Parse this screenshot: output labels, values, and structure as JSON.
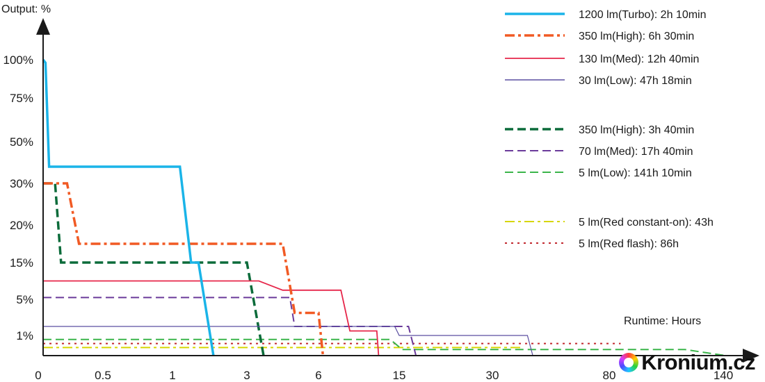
{
  "chart_data": {
    "type": "line",
    "step": true,
    "xlabel": "Runtime: Hours",
    "ylabel": "Output: %",
    "x_ticks": [
      "0",
      "0.5",
      "1",
      "3",
      "6",
      "15",
      "30",
      "80",
      "140"
    ],
    "x_tick_values": [
      0,
      0.5,
      1,
      3,
      6,
      15,
      30,
      80,
      140
    ],
    "y_ticks": [
      "1%",
      "5%",
      "15%",
      "20%",
      "30%",
      "50%",
      "75%",
      "100%"
    ],
    "y_tick_values": [
      1,
      5,
      15,
      20,
      30,
      50,
      75,
      100
    ],
    "axis_scale": "non-uniform (both axes; ticks evenly spaced)",
    "grid": false,
    "legend_position": "top-right",
    "legend_groups": [
      [
        "1200 lm(Turbo): 2h 10min",
        "350 lm(High): 6h 30min",
        "130 lm(Med): 12h 40min",
        "30 lm(Low): 47h 18min"
      ],
      [
        "350 lm(High): 3h 40min",
        "70 lm(Med): 17h 40min",
        "5 lm(Low): 141h 10min"
      ],
      [
        "5 lm(Red constant-on): 43h",
        "5 lm(Red flash): 86h"
      ]
    ],
    "series": [
      {
        "name": "1200 lm(Turbo): 2h 10min",
        "color": "#1ab4e8",
        "width": 3.5,
        "dash": "",
        "points": [
          [
            0,
            100
          ],
          [
            0.02,
            98
          ],
          [
            0.05,
            38
          ],
          [
            1.2,
            38
          ],
          [
            1.5,
            15
          ],
          [
            1.7,
            15
          ],
          [
            2.1,
            0
          ]
        ]
      },
      {
        "name": "350 lm(High): 6h 30min",
        "color": "#f15a24",
        "width": 3.5,
        "dash": "14,5,4,5",
        "points": [
          [
            0,
            30
          ],
          [
            0.2,
            30
          ],
          [
            0.3,
            17.5
          ],
          [
            4.5,
            17.5
          ],
          [
            5.0,
            3.5
          ],
          [
            6.0,
            3.5
          ],
          [
            6.5,
            0
          ]
        ]
      },
      {
        "name": "130 lm(Med): 12h 40min",
        "color": "#e6264a",
        "width": 1.8,
        "dash": "",
        "points": [
          [
            0,
            10
          ],
          [
            3.5,
            10
          ],
          [
            4.5,
            7.5
          ],
          [
            8.5,
            7.5
          ],
          [
            9.5,
            1.5
          ],
          [
            12.5,
            1.5
          ],
          [
            12.7,
            0
          ]
        ]
      },
      {
        "name": "30 lm(Low): 47h 18min",
        "color": "#5a4ea0",
        "width": 1.2,
        "dash": "",
        "points": [
          [
            0,
            2
          ],
          [
            14.5,
            2
          ],
          [
            15.0,
            1
          ],
          [
            45.0,
            1
          ],
          [
            47.3,
            0
          ]
        ]
      },
      {
        "name": "350 lm(High): 3h 40min",
        "color": "#0b6b3a",
        "width": 3.5,
        "dash": "12,6",
        "points": [
          [
            0,
            30
          ],
          [
            0.1,
            30
          ],
          [
            0.15,
            15
          ],
          [
            3.0,
            15
          ],
          [
            3.7,
            0
          ]
        ]
      },
      {
        "name": "70 lm(Med): 17h 40min",
        "color": "#6a3a9a",
        "width": 2,
        "dash": "12,6",
        "points": [
          [
            0,
            5.5
          ],
          [
            4.8,
            5.5
          ],
          [
            5.0,
            2
          ],
          [
            16.5,
            2
          ],
          [
            17.7,
            0
          ]
        ]
      },
      {
        "name": "5 lm(Low): 141h 10min",
        "color": "#3ab54a",
        "width": 2,
        "dash": "12,6",
        "points": [
          [
            0,
            0.8
          ],
          [
            14.0,
            0.8
          ],
          [
            15.5,
            0.3
          ],
          [
            120.0,
            0.3
          ],
          [
            141.2,
            0
          ]
        ]
      },
      {
        "name": "5 lm(Red constant-on): 43h",
        "color": "#d6d600",
        "width": 2,
        "dash": "14,5,4,5",
        "points": [
          [
            0,
            0.4
          ],
          [
            43.0,
            0.4
          ]
        ]
      },
      {
        "name": "5 lm(Red flash): 86h",
        "color": "#c1272d",
        "width": 2,
        "dash": "3,6",
        "points": [
          [
            0,
            0.6
          ],
          [
            86.0,
            0.6
          ]
        ]
      }
    ]
  },
  "watermark": {
    "text": "Kronium.cz",
    "icon": "color-ring-logo-icon"
  }
}
